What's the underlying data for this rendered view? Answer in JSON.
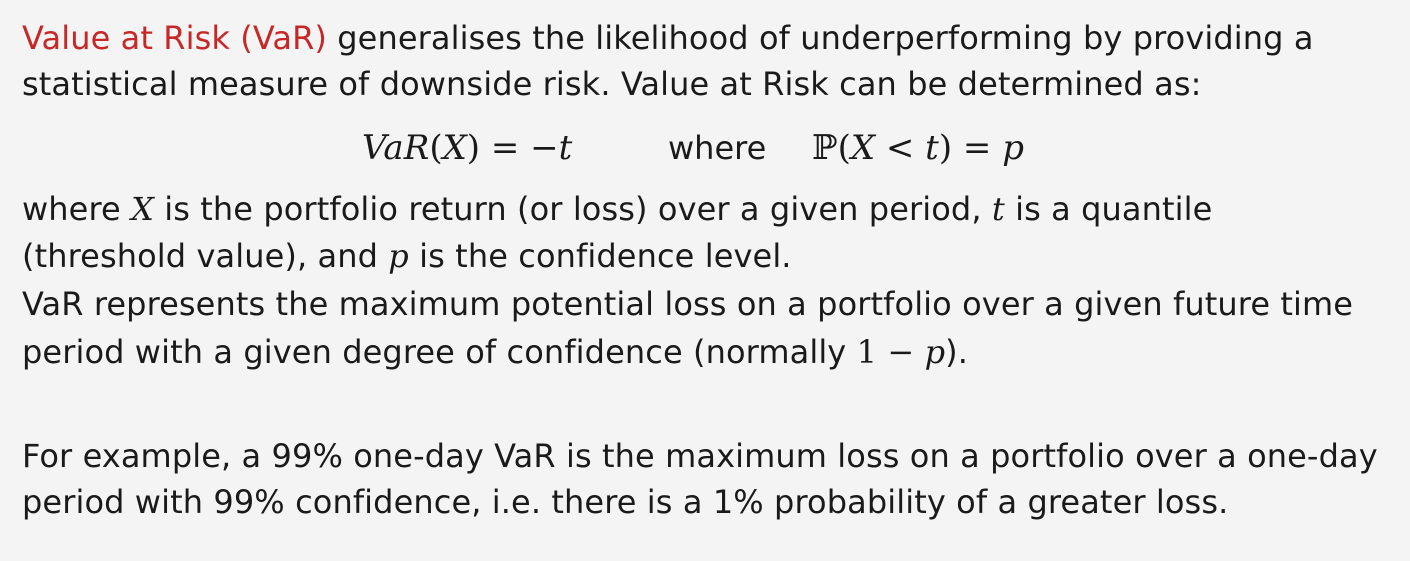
{
  "para1": {
    "term": "Value at Risk (VaR)",
    "line1_rest": " generalises the likelihood of underperforming by providing a",
    "line2": "statistical measure of downside risk. Value at Risk can be determined as:"
  },
  "equation": {
    "lhs_fn": "VaR",
    "lhs_var": "X",
    "equals1": " = −",
    "rhs_var": "t",
    "where": "where",
    "prob_symbol": "ℙ",
    "prob_var": "X",
    "lt": " < ",
    "prob_t": "t",
    "equals2": " = ",
    "p": "p"
  },
  "para2": {
    "a1": "where ",
    "X": "X",
    "a2": " is the portfolio return (or loss) over a given period, ",
    "t": "t",
    "a3": " is a quantile",
    "b1": "(threshold value), and ",
    "p": "p",
    "b2": " is the confidence level.",
    "c": "VaR represents the maximum potential loss on a portfolio over a given future time",
    "d1": "period with a given degree of confidence (normally ",
    "d_one": "1",
    "d_minus": " − ",
    "d_p": "p",
    "d2": ")."
  },
  "para3": {
    "line1": "For example, a 99% one-day VaR is the maximum loss on a portfolio over a one-day",
    "line2": "period with 99% confidence, i.e. there is a 1% probability of a greater loss."
  },
  "colors": {
    "highlight": "#c62828",
    "text": "#1a1a1a",
    "background": "#f4f4f4"
  }
}
